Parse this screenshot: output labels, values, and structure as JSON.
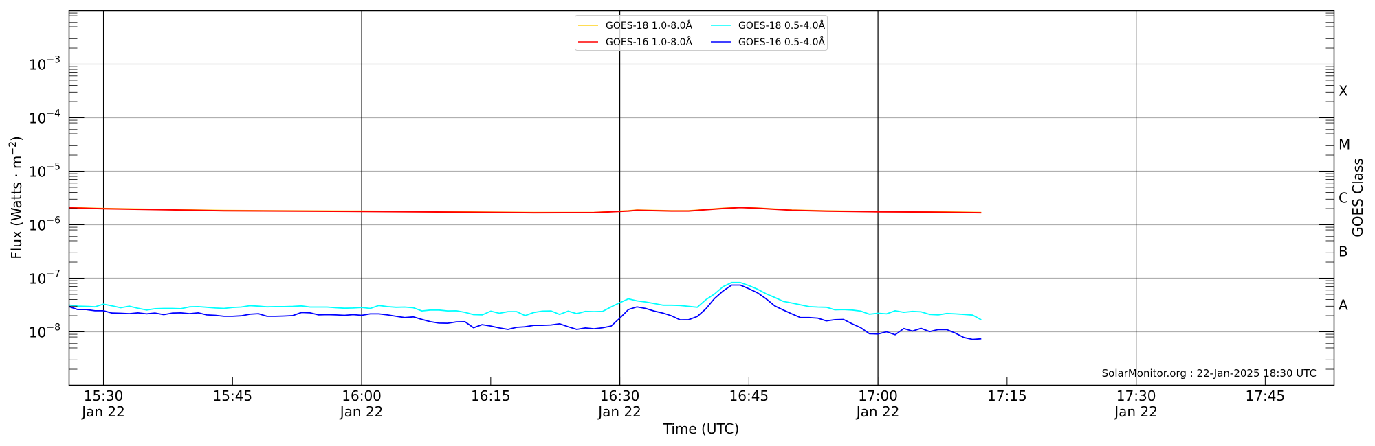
{
  "chart_data": {
    "type": "line",
    "title": "",
    "xlabel": "Time (UTC)",
    "ylabel": "Flux (Watts · m",
    "ylabel_exp": "−2",
    "ylabel_close": ")",
    "right_label": "GOES Class",
    "yscale": "log",
    "ylim": [
      1e-09,
      0.01
    ],
    "xlim": [
      "15:26",
      "17:53"
    ],
    "grid": "horizontal at decades",
    "legend_position": "top-center",
    "annotation": "SolarMonitor.org : 22-Jan-2025 18:30 UTC",
    "yticks": [
      {
        "value": 0.001,
        "base": "10",
        "exp": "−3"
      },
      {
        "value": 0.0001,
        "base": "10",
        "exp": "−4"
      },
      {
        "value": 1e-05,
        "base": "10",
        "exp": "−5"
      },
      {
        "value": 1e-06,
        "base": "10",
        "exp": "−6"
      },
      {
        "value": 1e-07,
        "base": "10",
        "exp": "−7"
      },
      {
        "value": 1e-08,
        "base": "10",
        "exp": "−8"
      }
    ],
    "xticks": [
      {
        "time": "15:30",
        "label": "15:30",
        "sub": "Jan 22",
        "vline": true
      },
      {
        "time": "15:45",
        "label": "15:45",
        "sub": "",
        "vline": false
      },
      {
        "time": "16:00",
        "label": "16:00",
        "sub": "Jan 22",
        "vline": true
      },
      {
        "time": "16:15",
        "label": "16:15",
        "sub": "",
        "vline": false
      },
      {
        "time": "16:30",
        "label": "16:30",
        "sub": "Jan 22",
        "vline": true
      },
      {
        "time": "16:45",
        "label": "16:45",
        "sub": "",
        "vline": false
      },
      {
        "time": "17:00",
        "label": "17:00",
        "sub": "Jan 22",
        "vline": true
      },
      {
        "time": "17:15",
        "label": "17:15",
        "sub": "",
        "vline": false
      },
      {
        "time": "17:30",
        "label": "17:30",
        "sub": "Jan 22",
        "vline": true
      },
      {
        "time": "17:45",
        "label": "17:45",
        "sub": "",
        "vline": false
      }
    ],
    "goes_classes": [
      {
        "label": "X",
        "value": 0.000316
      },
      {
        "label": "M",
        "value": 3.16e-05
      },
      {
        "label": "C",
        "value": 3.16e-06
      },
      {
        "label": "B",
        "value": 3.16e-07
      },
      {
        "label": "A",
        "value": 3.16e-08
      }
    ],
    "series": [
      {
        "name": "GOES-18 1.0-8.0Å",
        "color": "#ffd21a",
        "times": [
          "15:26",
          "15:30",
          "15:44",
          "16:00",
          "16:20",
          "16:27",
          "16:31",
          "16:32",
          "16:36",
          "16:38",
          "16:42",
          "16:44",
          "16:46",
          "16:50",
          "16:54",
          "17:00",
          "17:06",
          "17:12"
        ],
        "values": [
          2.09e-06,
          2.01e-06,
          1.84e-06,
          1.79e-06,
          1.69e-06,
          1.69e-06,
          1.82e-06,
          1.88e-06,
          1.82e-06,
          1.82e-06,
          2.03e-06,
          2.11e-06,
          2.05e-06,
          1.88e-06,
          1.81e-06,
          1.76e-06,
          1.74e-06,
          1.69e-06
        ]
      },
      {
        "name": "GOES-16 1.0-8.0Å",
        "color": "#ff0000",
        "times": [
          "15:26",
          "15:30",
          "15:44",
          "16:00",
          "16:20",
          "16:27",
          "16:31",
          "16:32",
          "16:36",
          "16:38",
          "16:42",
          "16:44",
          "16:46",
          "16:50",
          "16:54",
          "17:00",
          "17:06",
          "17:12"
        ],
        "values": [
          2.07e-06,
          1.99e-06,
          1.82e-06,
          1.77e-06,
          1.67e-06,
          1.68e-06,
          1.8e-06,
          1.86e-06,
          1.8e-06,
          1.8e-06,
          2.01e-06,
          2.09e-06,
          2.03e-06,
          1.86e-06,
          1.79e-06,
          1.74e-06,
          1.72e-06,
          1.67e-06
        ]
      },
      {
        "name": "GOES-18 0.5-4.0Å",
        "color": "#00ffff",
        "start": "15:26",
        "cadence_min": 1,
        "scale": 1e-08,
        "values": [
          3.16,
          3.01,
          2.98,
          2.92,
          3.29,
          3.04,
          2.81,
          3.01,
          2.75,
          2.55,
          2.7,
          2.73,
          2.73,
          2.7,
          2.92,
          2.95,
          2.87,
          2.78,
          2.73,
          2.84,
          2.89,
          3.07,
          3.01,
          2.92,
          2.95,
          2.95,
          2.98,
          3.04,
          2.89,
          2.89,
          2.89,
          2.81,
          2.75,
          2.78,
          2.84,
          2.73,
          3.1,
          2.95,
          2.87,
          2.89,
          2.81,
          2.45,
          2.55,
          2.55,
          2.45,
          2.47,
          2.31,
          2.09,
          2.07,
          2.43,
          2.22,
          2.38,
          2.38,
          2.01,
          2.29,
          2.43,
          2.45,
          2.11,
          2.43,
          2.18,
          2.4,
          2.38,
          2.4,
          2.92,
          3.49,
          4.12,
          3.78,
          3.6,
          3.36,
          3.13,
          3.13,
          3.1,
          2.98,
          2.87,
          3.97,
          5.07,
          6.95,
          8.3,
          8.3,
          7.3,
          6.24,
          5.12,
          4.38,
          3.7,
          3.45,
          3.19,
          2.95,
          2.89,
          2.87,
          2.57,
          2.6,
          2.55,
          2.43,
          2.13,
          2.22,
          2.16,
          2.47,
          2.31,
          2.4,
          2.36,
          2.11,
          2.07,
          2.2,
          2.16,
          2.11,
          2.05,
          1.67
        ]
      },
      {
        "name": "GOES-16 0.5-4.0Å",
        "color": "#0000ff",
        "start": "15:26",
        "cadence_min": 1,
        "scale": 1e-08,
        "values": [
          2.95,
          2.6,
          2.6,
          2.47,
          2.47,
          2.24,
          2.22,
          2.18,
          2.26,
          2.16,
          2.24,
          2.09,
          2.24,
          2.26,
          2.18,
          2.26,
          2.07,
          2.03,
          1.95,
          1.95,
          1.99,
          2.13,
          2.18,
          1.95,
          1.95,
          1.97,
          2.01,
          2.29,
          2.26,
          2.07,
          2.09,
          2.07,
          2.03,
          2.09,
          2.03,
          2.16,
          2.16,
          2.07,
          1.95,
          1.84,
          1.9,
          1.7,
          1.54,
          1.45,
          1.44,
          1.53,
          1.54,
          1.19,
          1.36,
          1.28,
          1.18,
          1.11,
          1.21,
          1.24,
          1.32,
          1.32,
          1.34,
          1.41,
          1.24,
          1.11,
          1.18,
          1.14,
          1.19,
          1.28,
          1.8,
          2.6,
          2.92,
          2.73,
          2.43,
          2.24,
          1.99,
          1.67,
          1.68,
          1.93,
          2.68,
          4.17,
          5.77,
          7.44,
          7.44,
          6.36,
          5.33,
          4.12,
          3.04,
          2.55,
          2.16,
          1.84,
          1.84,
          1.8,
          1.6,
          1.68,
          1.7,
          1.41,
          1.19,
          0.92,
          0.91,
          1.0,
          0.88,
          1.15,
          1.03,
          1.16,
          1.01,
          1.1,
          1.1,
          0.94,
          0.78,
          0.72,
          0.74
        ]
      }
    ]
  }
}
